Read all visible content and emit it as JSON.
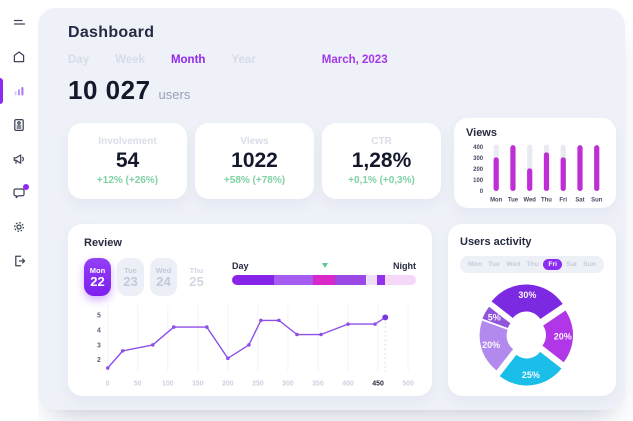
{
  "colors": {
    "panel_bg": "#eef1f8",
    "card_bg": "#ffffff",
    "accent_purple": "#8f2bf0",
    "tab_active": "#9128ec",
    "period_purple": "#a438e8",
    "positive_green": "#7fd2a4",
    "bar_magenta": "#bf2dd6",
    "line_purple": "#8d4fe8"
  },
  "sidebar": {
    "items": [
      {
        "name": "menu",
        "icon": "menu-icon",
        "active": false,
        "badge": false
      },
      {
        "name": "home",
        "icon": "home-icon",
        "active": false,
        "badge": false
      },
      {
        "name": "analytics",
        "icon": "bar-chart-icon",
        "active": true,
        "badge": false
      },
      {
        "name": "reports",
        "icon": "id-card-icon",
        "active": false,
        "badge": false
      },
      {
        "name": "announcements",
        "icon": "megaphone-icon",
        "active": false,
        "badge": false
      },
      {
        "name": "messages",
        "icon": "chat-icon",
        "active": false,
        "badge": true
      },
      {
        "name": "settings",
        "icon": "gear-icon",
        "active": false,
        "badge": false
      },
      {
        "name": "logout",
        "icon": "logout-icon",
        "active": false,
        "badge": false
      }
    ]
  },
  "header": {
    "title": "Dashboard",
    "tabs": [
      "Day",
      "Week",
      "Month",
      "Year"
    ],
    "active_tab": "Month",
    "period": "March, 2023"
  },
  "summary": {
    "value": "10 027",
    "unit": "users"
  },
  "stat_cards": [
    {
      "label": "Involvement",
      "value": "54",
      "delta": "+12% (+26%)"
    },
    {
      "label": "Views",
      "value": "1022",
      "delta": "+58% (+78%)"
    },
    {
      "label": "CTR",
      "value": "1,28%",
      "delta": "+0,1% (+0,3%)"
    }
  ],
  "review": {
    "title": "Review",
    "dates": [
      {
        "dow": "Mon",
        "day": "22",
        "state": "active"
      },
      {
        "dow": "Tue",
        "day": "23",
        "state": "muted"
      },
      {
        "dow": "Wed",
        "day": "24",
        "state": "muted"
      },
      {
        "dow": "Thu",
        "day": "25",
        "state": "plain"
      }
    ]
  },
  "users_activity": {
    "title": "Users activity",
    "days": [
      "Mon",
      "Tue",
      "Wed",
      "Thu",
      "Fri",
      "Sat",
      "Sun"
    ],
    "selected_day": "Fri"
  },
  "chart_data": [
    {
      "id": "views_bars",
      "type": "bar",
      "title": "Views",
      "categories": [
        "Mon",
        "Tue",
        "Wed",
        "Thu",
        "Fri",
        "Sat",
        "Sun"
      ],
      "values": [
        305,
        415,
        205,
        350,
        305,
        415,
        415
      ],
      "ylim": [
        0,
        420
      ],
      "yticks": [
        400,
        300,
        200,
        100,
        0
      ],
      "bar_color": "#bf2dd6",
      "track_color": "#e9ebf2",
      "legend": "none",
      "grid": false
    },
    {
      "id": "review_line",
      "type": "line",
      "title": "Review",
      "points": [
        [
          0,
          1.45
        ],
        [
          25,
          2.6
        ],
        [
          75,
          3.0
        ],
        [
          110,
          4.2
        ],
        [
          165,
          4.2
        ],
        [
          200,
          2.1
        ],
        [
          235,
          3.0
        ],
        [
          255,
          4.65
        ],
        [
          285,
          4.65
        ],
        [
          315,
          3.7
        ],
        [
          355,
          3.7
        ],
        [
          400,
          4.4
        ],
        [
          445,
          4.4
        ],
        [
          462,
          4.85
        ]
      ],
      "xticks": [
        0,
        50,
        100,
        150,
        200,
        250,
        300,
        350,
        400,
        450,
        500
      ],
      "active_xtick": 450,
      "yticks": [
        5,
        4,
        3,
        2
      ],
      "xlim": [
        0,
        500
      ],
      "ylim": [
        1.2,
        5.45
      ],
      "line_color": "#8d4fe8",
      "grid": true,
      "legend": "none"
    },
    {
      "id": "users_activity_pie",
      "type": "pie",
      "title": "Users activity",
      "start_angle": -52,
      "donut": true,
      "slices": [
        {
          "label": "30%",
          "value": 30,
          "color": "#7b2ae2",
          "explode": 6.5
        },
        {
          "label": "20%",
          "value": 20,
          "color": "#b136e8",
          "explode": 3
        },
        {
          "label": "25%",
          "value": 25,
          "color": "#1abee8",
          "explode": 6.5
        },
        {
          "label": "20%",
          "value": 20,
          "color": "#b289ec",
          "explode": 2.5
        },
        {
          "label": "5%",
          "value": 5,
          "color": "#9155dc",
          "explode": 2.5
        }
      ],
      "legend": "none"
    },
    {
      "id": "day_night_scale",
      "type": "segmented-bar",
      "left_label": "Day",
      "right_label": "Night",
      "marker_pos": 0.49,
      "marker_color": "#56cd8e",
      "segments": [
        {
          "width": 0.23,
          "color": "#8824e8"
        },
        {
          "width": 0.21,
          "color": "#a65cf0"
        },
        {
          "width": 0.12,
          "color": "#d829c6"
        },
        {
          "width": 0.17,
          "color": "#9c48e4"
        },
        {
          "width": 0.06,
          "color": "#efdffb"
        },
        {
          "width": 0.04,
          "color": "#9032ea"
        },
        {
          "width": 0.17,
          "color": "#f5d7f9"
        }
      ]
    }
  ]
}
